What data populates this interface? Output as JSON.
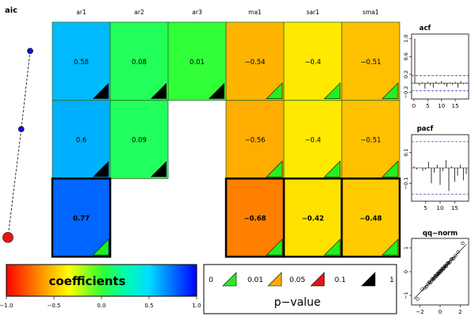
{
  "chart_data": [
    {
      "type": "heatmap",
      "columns": [
        "ar1",
        "ar2",
        "ar3",
        "ma1",
        "sar1",
        "sma1"
      ],
      "rows": [
        {
          "label": "",
          "values": [
            0.58,
            0.08,
            0.01,
            -0.54,
            -0.4,
            -0.51
          ],
          "pbin": [
            3,
            3,
            3,
            0,
            0,
            0
          ],
          "bold": false
        },
        {
          "label": "",
          "values": [
            0.6,
            0.09,
            null,
            -0.56,
            -0.4,
            -0.51
          ],
          "pbin": [
            3,
            3,
            null,
            0,
            0,
            0
          ],
          "bold": false
        },
        {
          "label": "",
          "values": [
            0.77,
            null,
            null,
            -0.68,
            -0.42,
            -0.48
          ],
          "pbin": [
            0,
            null,
            null,
            0,
            0,
            0
          ],
          "bold": true
        }
      ],
      "display_values": [
        [
          "0.58",
          "0.08",
          "0.01",
          "−0.54",
          "−0.4",
          "−0.51"
        ],
        [
          "0.6",
          "0.09",
          "",
          "−0.56",
          "−0.4",
          "−0.51"
        ],
        [
          "0.77",
          "",
          "",
          "−0.68",
          "−0.42",
          "−0.48"
        ]
      ],
      "selected_row": 2,
      "color_range": [
        -1,
        1
      ]
    },
    {
      "type": "line",
      "title": "aic",
      "values": [
        0.2,
        0.52,
        1.0
      ],
      "highlight_index": 2,
      "note": "relative values, no axis printed"
    },
    {
      "type": "bar",
      "title": "acf",
      "x": [
        1,
        2,
        3,
        4,
        5,
        6,
        7,
        8,
        9,
        10,
        11,
        12,
        13,
        14,
        15,
        16,
        17,
        18,
        19
      ],
      "values": [
        0.01,
        -0.05,
        0.02,
        -0.12,
        0.03,
        -0.05,
        -0.1,
        0.04,
        -0.02,
        0.05,
        -0.03,
        -0.08,
        0.02,
        -0.04,
        0.03,
        -0.1,
        0.05,
        -0.02,
        0.01
      ],
      "xticks": [
        0,
        5,
        10,
        15
      ],
      "yticks": [
        "1.0",
        "0.6",
        "0.2",
        "−0.2"
      ],
      "ytick_values": [
        1.0,
        0.6,
        0.2,
        -0.2
      ],
      "xlim": [
        0,
        19
      ],
      "ylim": [
        -0.3,
        1.05
      ],
      "conf_band": [
        0.17,
        -0.17
      ]
    },
    {
      "type": "bar",
      "title": "pacf",
      "x": [
        1,
        2,
        3,
        4,
        5,
        6,
        7,
        8,
        9,
        10,
        11,
        12,
        13,
        14,
        15,
        16,
        17,
        18,
        19
      ],
      "values": [
        0.01,
        -0.01,
        0.0,
        -0.02,
        -0.01,
        0.04,
        -0.1,
        -0.03,
        0.02,
        -0.11,
        -0.02,
        0.05,
        -0.15,
        0.01,
        -0.09,
        -0.05,
        0.02,
        -0.08,
        -0.04
      ],
      "xticks": [
        5,
        10,
        15
      ],
      "yticks": [
        "0.1",
        "−0.1"
      ],
      "ytick_values": [
        0.1,
        -0.1
      ],
      "xlim": [
        1,
        19
      ],
      "ylim": [
        -0.2,
        0.2
      ],
      "conf_band": [
        0.17,
        -0.17
      ]
    },
    {
      "type": "scatter",
      "title": "qq−norm",
      "xticks": [
        "−2",
        "0",
        "2"
      ],
      "xtick_values": [
        -2,
        0,
        2
      ],
      "yticks": [
        "−1",
        "0",
        "1"
      ],
      "ytick_values": [
        -1,
        0,
        1
      ],
      "xlim": [
        -2.6,
        2.6
      ],
      "ylim": [
        -1.3,
        1.3
      ],
      "ref_line": [
        [
          -2.6,
          -1.15
        ],
        [
          2.6,
          1.15
        ]
      ]
    },
    {
      "type": "legend",
      "title": "coefficients",
      "ticks": [
        "−1.0",
        "−0.5",
        "0.0",
        "0.5",
        "1.0"
      ],
      "tick_values": [
        -1.0,
        -0.5,
        0.0,
        0.5,
        1.0
      ]
    },
    {
      "type": "legend",
      "title": "p−value",
      "breaks": [
        "0",
        "0.01",
        "0.05",
        "0.1",
        "1"
      ],
      "colors": [
        "#22ee22",
        "#ffaa00",
        "#ee1111",
        "#000000"
      ]
    }
  ],
  "colors": {
    "cell_border": "#2f6f2f",
    "band_line": "#3344dd",
    "aic_point": "#1111dd",
    "aic_selected": "#ee1111"
  }
}
